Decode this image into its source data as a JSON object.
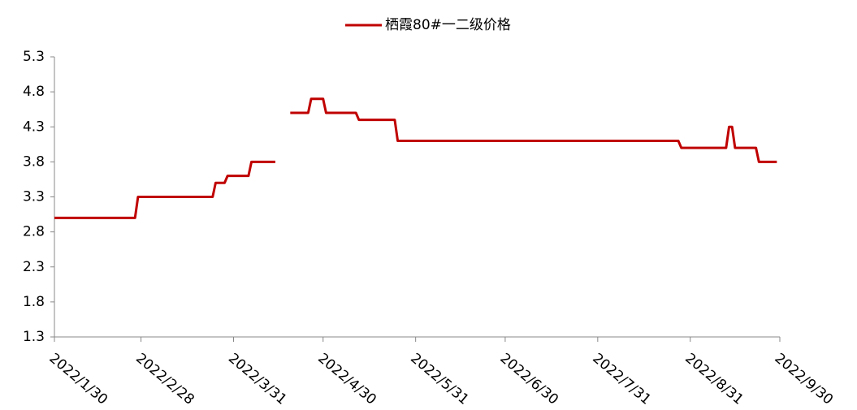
{
  "chart_data": {
    "type": "line",
    "x": [
      "2022/1/30",
      "2022/2/26",
      "2022/2/27",
      "2022/3/24",
      "2022/3/25",
      "2022/3/28",
      "2022/3/29",
      "2022/4/5",
      "2022/4/6",
      "2022/4/14",
      "2022/4/16",
      "2022/4/19",
      "2022/4/25",
      "2022/4/26",
      "2022/4/30",
      "2022/5/1",
      "2022/5/11",
      "2022/5/12",
      "2022/5/24",
      "2022/5/25",
      "2022/8/27",
      "2022/8/28",
      "2022/9/12",
      "2022/9/13",
      "2022/9/14",
      "2022/9/15",
      "2022/9/22",
      "2022/9/23",
      "2022/9/29"
    ],
    "series": [
      {
        "name": "栖霞80#一二级价格",
        "color": "#c00000",
        "values": [
          3.0,
          3.0,
          3.3,
          3.3,
          3.5,
          3.5,
          3.6,
          3.6,
          3.8,
          3.8,
          null,
          4.5,
          4.5,
          4.7,
          4.7,
          4.5,
          4.5,
          4.4,
          4.4,
          4.1,
          4.1,
          4.0,
          4.0,
          4.3,
          4.3,
          4.0,
          4.0,
          3.8,
          3.8
        ]
      }
    ],
    "xlim": [
      "2022/1/30",
      "2022/9/30"
    ],
    "xticks": [
      "2022/1/30",
      "2022/2/28",
      "2022/3/31",
      "2022/4/30",
      "2022/5/31",
      "2022/6/30",
      "2022/7/31",
      "2022/8/31",
      "2022/9/30"
    ],
    "ylim": [
      1.3,
      5.3
    ],
    "yticks": [
      1.3,
      1.8,
      2.3,
      2.8,
      3.3,
      3.8,
      4.3,
      4.8,
      5.3
    ],
    "legend": "top",
    "grid": false
  }
}
